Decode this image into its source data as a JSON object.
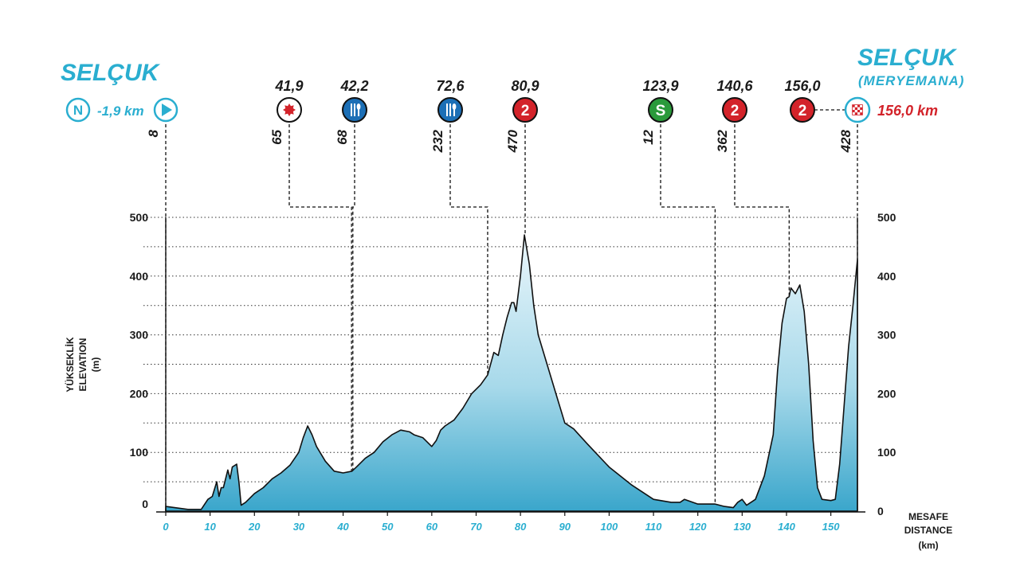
{
  "header": {
    "start_city": "SELÇUK",
    "finish_city": "SELÇUK",
    "finish_subtitle": "(MERYEMANA)",
    "neutral_icon_letter": "N",
    "neutral_km": "-1,9 km",
    "finish_km": "156,0 km"
  },
  "markers": [
    {
      "km": 0,
      "km_label": "",
      "alt_label": "8",
      "icon": "start-flag-icon",
      "icon_text": "",
      "color": "#2aaed0"
    },
    {
      "km": 41.9,
      "km_label": "41,9",
      "alt_label": "65",
      "icon": "intermediate-point-icon",
      "icon_text": "",
      "color": "#d3232a"
    },
    {
      "km": 42.2,
      "km_label": "42,2",
      "alt_label": "68",
      "icon": "feed-zone-icon",
      "icon_text": "",
      "color": "#1c6fb6"
    },
    {
      "km": 72.6,
      "km_label": "72,6",
      "alt_label": "232",
      "icon": "feed-zone-icon",
      "icon_text": "",
      "color": "#1c6fb6"
    },
    {
      "km": 80.9,
      "km_label": "80,9",
      "alt_label": "470",
      "icon": "kom-category-icon",
      "icon_text": "2",
      "color": "#d3232a"
    },
    {
      "km": 123.9,
      "km_label": "123,9",
      "alt_label": "12",
      "icon": "sprint-icon",
      "icon_text": "S",
      "color": "#2a9a3b"
    },
    {
      "km": 140.6,
      "km_label": "140,6",
      "alt_label": "362",
      "icon": "kom-category-icon",
      "icon_text": "2",
      "color": "#d3232a"
    },
    {
      "km": 156.0,
      "km_label": "156,0",
      "alt_label": "428",
      "icon": "kom-category-icon",
      "icon_text": "2",
      "color": "#d3232a"
    }
  ],
  "chart_data": {
    "type": "area",
    "ylabel_lines": [
      "YÜKSEKLİK",
      "ELEVATION",
      "(m)"
    ],
    "xlabel_lines": [
      "MESAFE",
      "DISTANCE",
      "(km)"
    ],
    "xlim": [
      0,
      156
    ],
    "ylim": [
      0,
      500
    ],
    "x_ticks": [
      "0",
      "10",
      "20",
      "30",
      "40",
      "50",
      "60",
      "70",
      "80",
      "90",
      "100",
      "110",
      "120",
      "130",
      "140",
      "150"
    ],
    "y_ticks_left": [
      "0",
      "100",
      "200",
      "300",
      "400",
      "500"
    ],
    "y_ticks_right": [
      "0",
      "100",
      "200",
      "300",
      "400",
      "500"
    ],
    "grid": "dotted horizontal every 50 m",
    "fill_color": "#4fb3d3",
    "series": [
      {
        "x": [
          0,
          2,
          5,
          8,
          9.5,
          10.5,
          11.5,
          12,
          12.5,
          13,
          14,
          14.5,
          15,
          16,
          16.5,
          17,
          18,
          20,
          22,
          24,
          26,
          28,
          30,
          31,
          32,
          33,
          34,
          36,
          38,
          40,
          42,
          43,
          45,
          47,
          49,
          51,
          53,
          55,
          56,
          58,
          60,
          61,
          62,
          63,
          65,
          67,
          69,
          71,
          72.6,
          74,
          75,
          76,
          77,
          78,
          78.5,
          79,
          80,
          80.9,
          82,
          83,
          84,
          86,
          88,
          90,
          92,
          95,
          100,
          105,
          110,
          114,
          116,
          117,
          120,
          123.9,
          126,
          128,
          129,
          130,
          131,
          133,
          135,
          137,
          138,
          139,
          140,
          140.6,
          141,
          142,
          143,
          144,
          145,
          146,
          147,
          148,
          150,
          151,
          152,
          153,
          154,
          155,
          156
        ],
        "y": [
          8,
          6,
          3,
          3,
          20,
          25,
          50,
          25,
          40,
          40,
          70,
          55,
          75,
          80,
          50,
          10,
          15,
          30,
          40,
          55,
          65,
          78,
          100,
          125,
          145,
          130,
          110,
          85,
          68,
          65,
          68,
          75,
          90,
          100,
          118,
          130,
          138,
          135,
          130,
          125,
          110,
          120,
          138,
          145,
          155,
          175,
          200,
          215,
          232,
          270,
          265,
          300,
          330,
          355,
          355,
          340,
          400,
          470,
          420,
          350,
          300,
          250,
          200,
          150,
          140,
          115,
          75,
          45,
          20,
          15,
          15,
          20,
          12,
          12,
          8,
          6,
          15,
          20,
          10,
          20,
          60,
          130,
          240,
          320,
          362,
          365,
          380,
          370,
          385,
          340,
          250,
          120,
          40,
          20,
          18,
          20,
          80,
          180,
          280,
          350,
          428
        ]
      }
    ]
  }
}
